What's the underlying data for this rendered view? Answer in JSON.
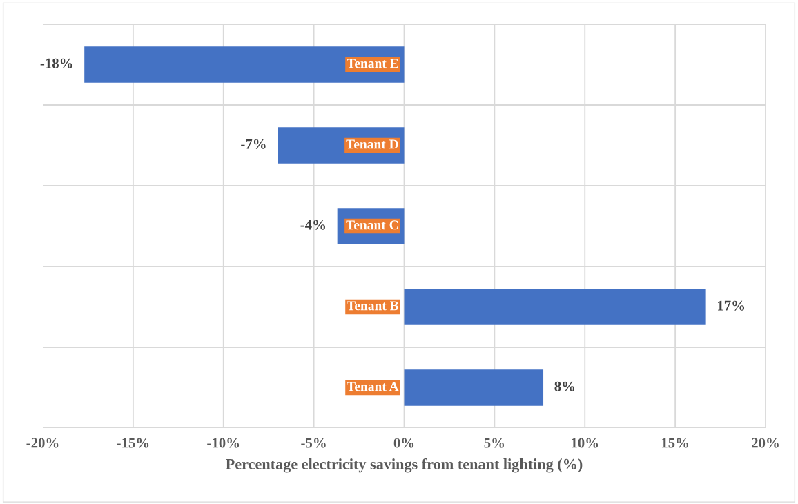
{
  "chart_data": {
    "type": "bar",
    "orientation": "horizontal",
    "xlabel": "Percentage electricity savings from tenant lighting (%)",
    "categories": [
      "Tenant E",
      "Tenant D",
      "Tenant C",
      "Tenant B",
      "Tenant A"
    ],
    "values": [
      -17.7,
      -7.0,
      -3.7,
      16.7,
      7.7
    ],
    "value_labels": [
      "-18%",
      "-7%",
      "-4%",
      "17%",
      "8%"
    ],
    "color": "#4472c4",
    "xlim": [
      -20,
      20
    ],
    "xticks": [
      {
        "value": -20,
        "label": "-20%"
      },
      {
        "value": -15,
        "label": "-15%"
      },
      {
        "value": -10,
        "label": "-10%"
      },
      {
        "value": -5,
        "label": "-5%"
      },
      {
        "value": 0,
        "label": "0%"
      },
      {
        "value": 5,
        "label": "5%"
      },
      {
        "value": 10,
        "label": "10%"
      },
      {
        "value": 15,
        "label": "15%"
      },
      {
        "value": 20,
        "label": "20%"
      }
    ],
    "grid": true
  }
}
